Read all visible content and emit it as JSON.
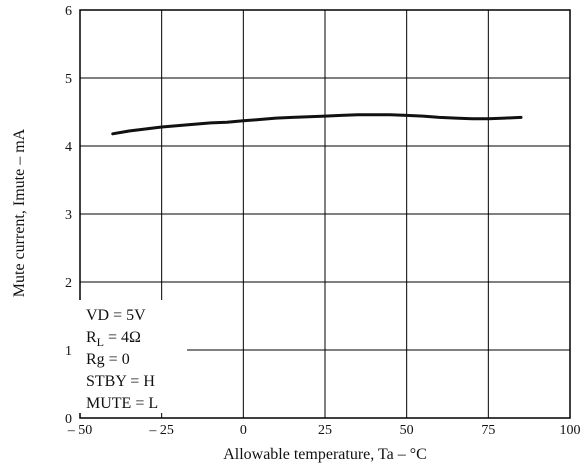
{
  "chart_data": {
    "type": "line",
    "xlabel": "Allowable temperature, Ta  –  °C",
    "ylabel": "Mute current, Imute  –  mA",
    "xlim": [
      -50,
      100
    ],
    "ylim": [
      0,
      6
    ],
    "x_ticks": [
      -50,
      -25,
      0,
      25,
      50,
      75,
      100
    ],
    "y_ticks": [
      0,
      1,
      2,
      3,
      4,
      5,
      6
    ],
    "x_tick_labels": [
      "– 50",
      "– 25",
      "0",
      "25",
      "50",
      "75",
      "100"
    ],
    "y_tick_labels": [
      "0",
      "1",
      "2",
      "3",
      "4",
      "5",
      "6"
    ],
    "grid": true,
    "conditions": [
      "VD = 5V",
      "RL = 4Ω",
      "Rg = 0",
      "STBY = H",
      "MUTE = L"
    ],
    "series": [
      {
        "x": [
          -40,
          -35,
          -30,
          -25,
          -20,
          -15,
          -10,
          -5,
          0,
          5,
          10,
          15,
          20,
          25,
          30,
          35,
          40,
          45,
          50,
          55,
          60,
          65,
          70,
          75,
          80,
          85
        ],
        "y": [
          4.18,
          4.22,
          4.25,
          4.28,
          4.3,
          4.32,
          4.34,
          4.35,
          4.37,
          4.39,
          4.41,
          4.42,
          4.43,
          4.44,
          4.45,
          4.46,
          4.46,
          4.46,
          4.45,
          4.44,
          4.42,
          4.41,
          4.4,
          4.4,
          4.41,
          4.42
        ]
      }
    ]
  }
}
